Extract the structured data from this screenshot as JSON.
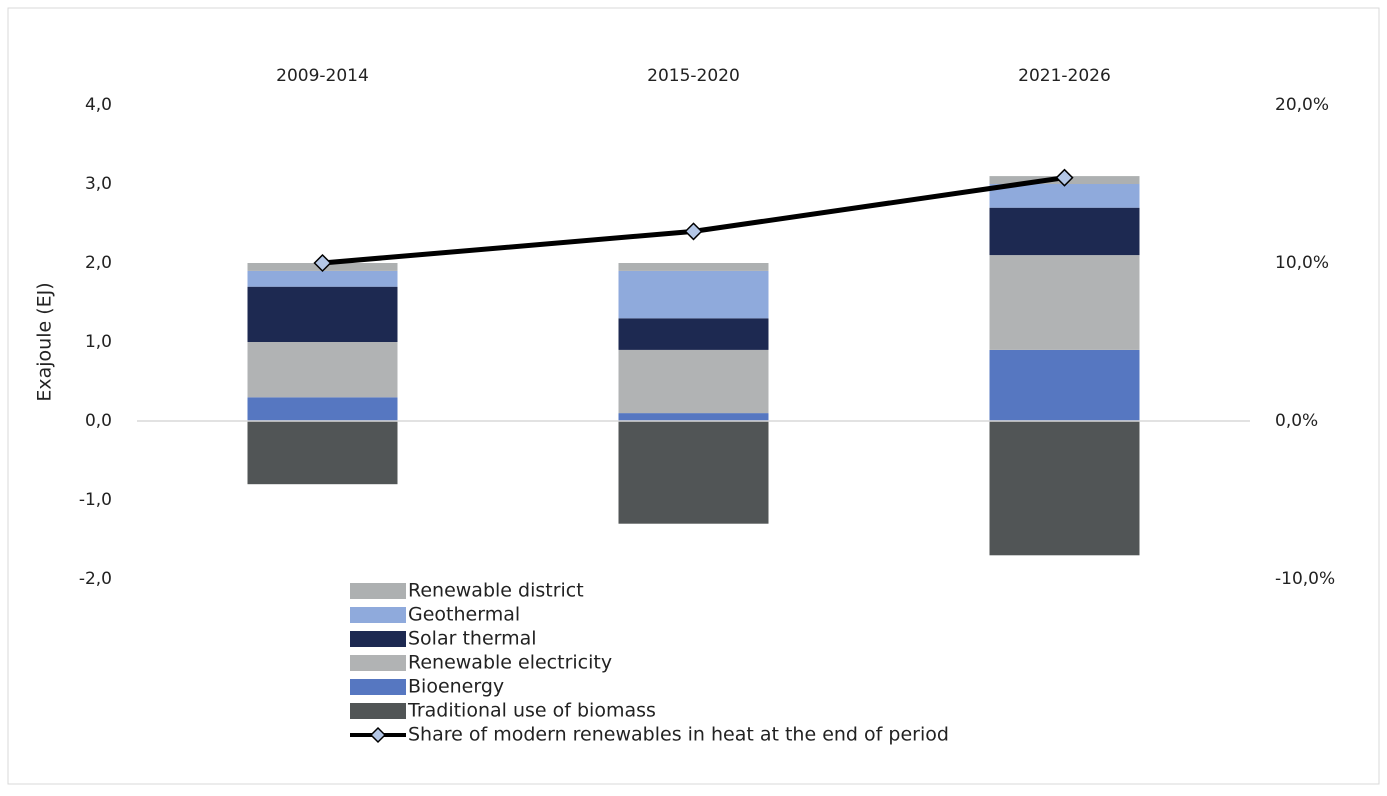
{
  "chart_data": {
    "type": "bar",
    "stacked": true,
    "categories": [
      "2009-2014",
      "2015-2020",
      "2021-2026"
    ],
    "y_label": "Exajoule (EJ)",
    "ylim": [
      -2,
      4
    ],
    "yticks": [
      {
        "value": -2,
        "label": "-2,0"
      },
      {
        "value": -1,
        "label": "-1,0"
      },
      {
        "value": 0,
        "label": "0,0"
      },
      {
        "value": 1,
        "label": "1,0"
      },
      {
        "value": 2,
        "label": "2,0"
      },
      {
        "value": 3,
        "label": "3,0"
      },
      {
        "value": 4,
        "label": "4,0"
      }
    ],
    "y2lim": [
      -10,
      20
    ],
    "y2ticks": [
      {
        "value": -10,
        "label": "-10,0%"
      },
      {
        "value": 0,
        "label": "0,0%"
      },
      {
        "value": 10,
        "label": "10,0%"
      },
      {
        "value": 20,
        "label": "20,0%"
      }
    ],
    "series": [
      {
        "name": "Traditional use of biomass",
        "color": "#515556",
        "values": [
          -0.8,
          -1.3,
          -1.7
        ]
      },
      {
        "name": "Bioenergy",
        "color": "#5677c1",
        "values": [
          0.3,
          0.1,
          0.9
        ]
      },
      {
        "name": "Renewable electricity",
        "color": "#b1b3b4",
        "values": [
          0.7,
          0.8,
          1.2
        ]
      },
      {
        "name": "Solar thermal",
        "color": "#1d2951",
        "values": [
          0.7,
          0.4,
          0.6
        ]
      },
      {
        "name": "Geothermal",
        "color": "#8faadc",
        "values": [
          0.2,
          0.6,
          0.3
        ]
      },
      {
        "name": "Renewable district",
        "color": "#adb0b1",
        "values": [
          0.1,
          0.1,
          0.1
        ]
      },
      {
        "name": "Share of modern renewables in heat at the end of period",
        "type": "line",
        "axis": "y2",
        "color": "#000000",
        "marker_color": "#b4c7e7",
        "values": [
          10,
          12,
          15.4
        ]
      }
    ]
  }
}
